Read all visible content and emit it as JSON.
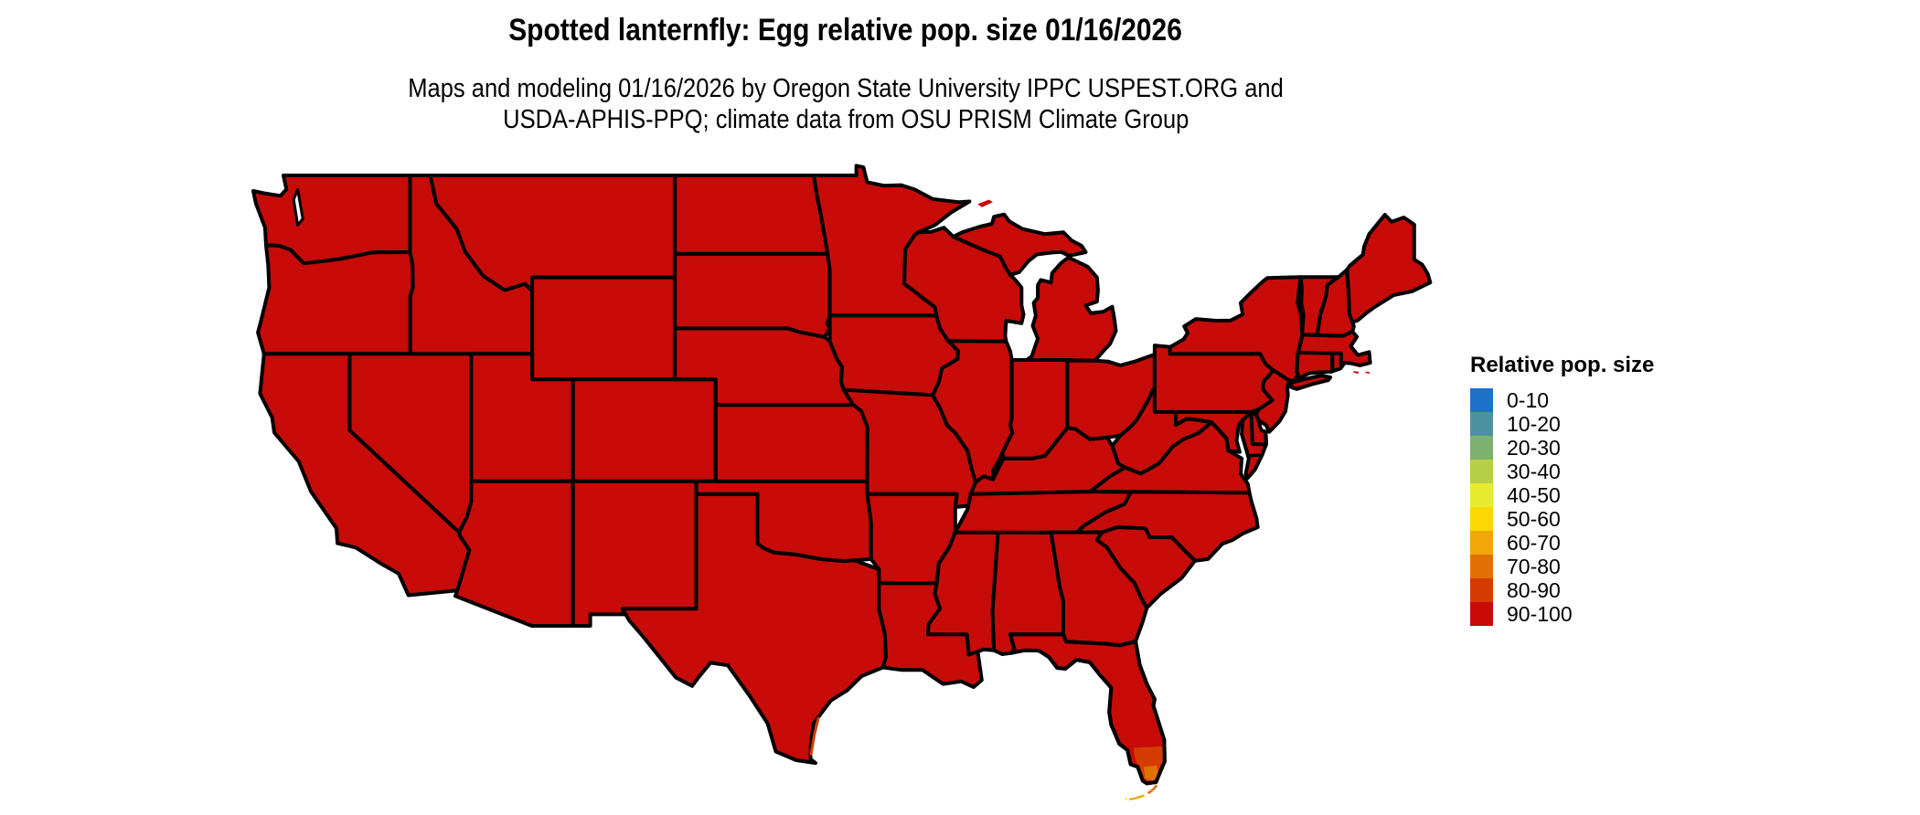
{
  "title": "Spotted lanternfly: Egg relative pop. size 01/16/2026",
  "subtitle": {
    "line1": "Maps and modeling 01/16/2026 by Oregon State University IPPC USPEST.ORG and",
    "line2": "USDA-APHIS-PPQ; climate data from OSU PRISM Climate Group"
  },
  "legend": {
    "title": "Relative pop. size",
    "items": [
      {
        "label": "0-10",
        "color": "#1d72cc"
      },
      {
        "label": "10-20",
        "color": "#4d92a0"
      },
      {
        "label": "20-30",
        "color": "#7cb26e"
      },
      {
        "label": "30-40",
        "color": "#b5cf46"
      },
      {
        "label": "40-50",
        "color": "#e6eb2e"
      },
      {
        "label": "50-60",
        "color": "#fdd903"
      },
      {
        "label": "60-70",
        "color": "#f0a808"
      },
      {
        "label": "70-80",
        "color": "#e17102"
      },
      {
        "label": "80-90",
        "color": "#d53c02"
      },
      {
        "label": "90-100",
        "color": "#c60b08"
      }
    ]
  },
  "map": {
    "land_color": "#c60b08",
    "border_color": "#000000",
    "water_color": "#ffffff",
    "dominant_range": "90-100",
    "overlays": [
      {
        "name": "florida-tip-band-80-90",
        "color": "#d53c02"
      },
      {
        "name": "florida-tip-band-70-80",
        "color": "#e17102"
      },
      {
        "name": "florida-keys-upper",
        "color": "#e17102"
      },
      {
        "name": "florida-keys-lower",
        "color": "#f0a808"
      },
      {
        "name": "florida-keys-west-dot",
        "color": "#fdd903"
      },
      {
        "name": "texas-coast-sliver",
        "color": "#d53c02"
      }
    ]
  }
}
